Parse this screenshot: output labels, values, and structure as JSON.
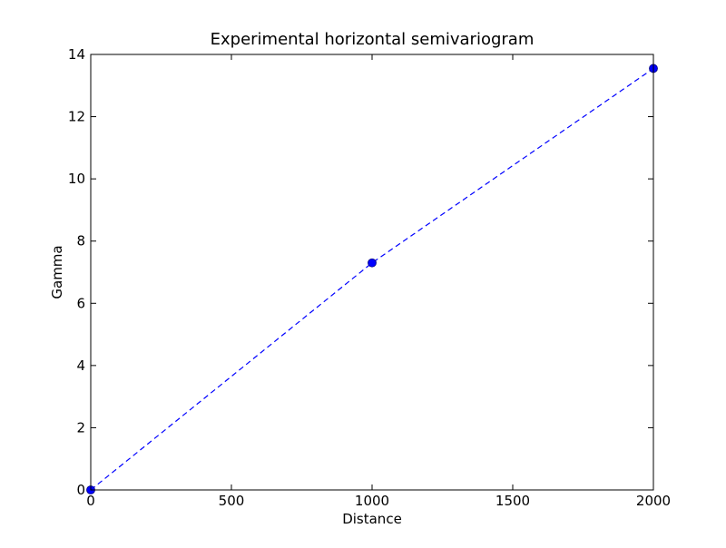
{
  "chart_data": {
    "type": "line",
    "title": "Experimental horizontal semivariogram",
    "xlabel": "Distance",
    "ylabel": "Gamma",
    "xlim": [
      0,
      2000
    ],
    "ylim": [
      0,
      14
    ],
    "xticks": [
      0,
      500,
      1000,
      1500,
      2000
    ],
    "yticks": [
      0,
      2,
      4,
      6,
      8,
      10,
      12,
      14
    ],
    "grid": false,
    "legend": "none",
    "series": [
      {
        "x": [
          0,
          1000,
          2000
        ],
        "y": [
          0,
          7.3,
          13.55
        ],
        "color": "#0000ff",
        "line_style": "dashed",
        "marker": "circle"
      }
    ]
  }
}
